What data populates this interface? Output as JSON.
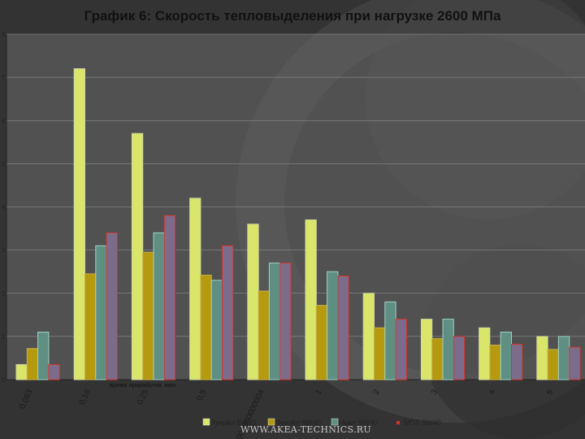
{
  "chart_data": {
    "type": "bar",
    "title": "График 6: Скорость тепловыделения при нагрузке 2600 МПа",
    "xlabel": "время приработки, мин",
    "ylabel": "",
    "ylim": [
      0,
      8
    ],
    "yticks": [
      "0",
      "1",
      "2",
      "3",
      "4",
      "5",
      "6",
      "7",
      "8"
    ],
    "categories": [
      "0,083",
      "0,16",
      "0,25",
      "0,5",
      "0,750000000000004",
      "1",
      "2",
      "3",
      "4",
      "5"
    ],
    "series": [
      {
        "name": "Лукойл 5W40",
        "color": "#d9e66a",
        "values": [
          0.35,
          7.2,
          5.7,
          4.2,
          3.6,
          3.7,
          2.0,
          1.4,
          1.2,
          1.0
        ]
      },
      {
        "name": "Лукойл 5W40",
        "color": "#b59a10",
        "values": [
          0.72,
          2.45,
          2.95,
          2.42,
          2.05,
          1.72,
          1.2,
          0.95,
          0.8,
          0.7
        ]
      },
      {
        "name": "Ньют 5W40",
        "color": "#5e8f82",
        "values": [
          1.1,
          3.1,
          3.4,
          2.3,
          2.7,
          2.5,
          1.8,
          1.4,
          1.1,
          1.0
        ]
      },
      {
        "name": "МПЛ 5W40",
        "color": "#7c6c8c",
        "values": [
          0.35,
          3.4,
          3.8,
          3.1,
          2.7,
          2.4,
          1.4,
          1.0,
          0.82,
          0.75
        ]
      }
    ],
    "grid": true,
    "legend": "bottom"
  },
  "watermark": "WWW.AKEA-TECHNICS.RU",
  "colors": {
    "background": "#3a3a3a",
    "plot": "#6b6b6b",
    "bar_edge_fill_series1": "#c7c7c7",
    "bar_edge_other": "#d8332a"
  }
}
